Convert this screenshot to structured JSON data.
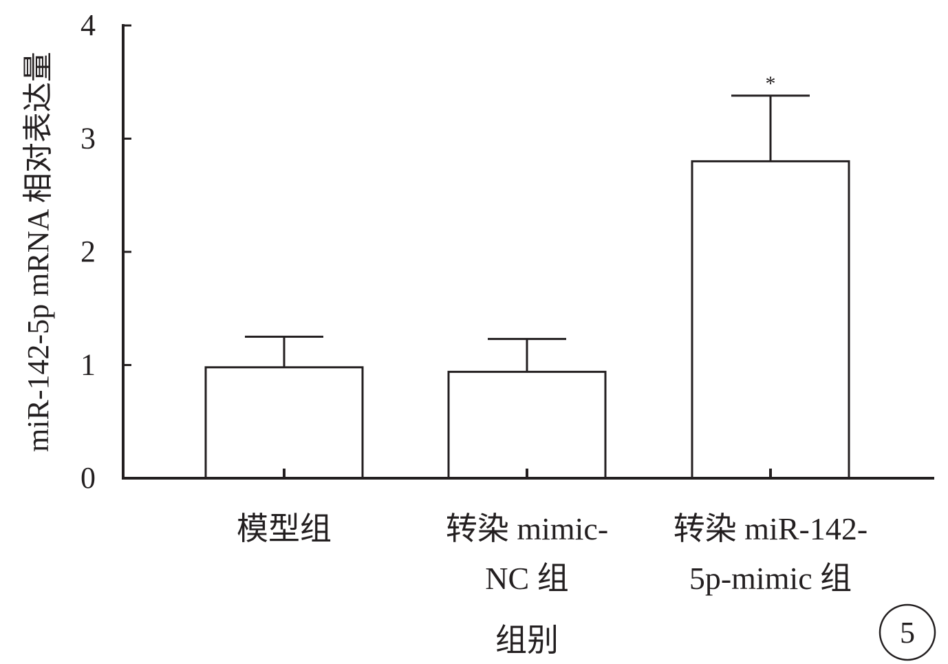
{
  "chart_data": {
    "type": "bar",
    "ylabel": "miR-142-5p mRNA 相对表达量",
    "xlabel": "组别",
    "ylim": [
      0,
      4
    ],
    "yticks": [
      "0",
      "1",
      "2",
      "3",
      "4"
    ],
    "categories": [
      [
        "模型组"
      ],
      [
        "转染 mimic-",
        "NC 组"
      ],
      [
        "转染 miR-142-",
        "5p-mimic 组"
      ]
    ],
    "values": [
      0.98,
      0.94,
      2.8
    ],
    "errors": [
      0.27,
      0.29,
      0.58
    ],
    "annotations": [
      "",
      "",
      "*"
    ],
    "colors": {
      "bar_fill": "#ffffff",
      "stroke": "#231f20"
    }
  },
  "figure_badge": "5"
}
